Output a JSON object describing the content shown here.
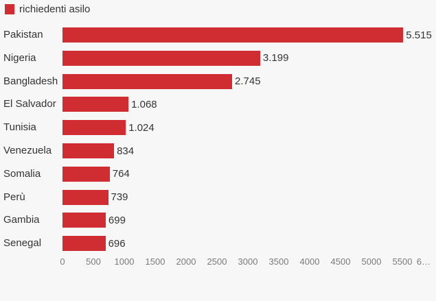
{
  "colors": {
    "bar": "#d02d33",
    "background": "#f7f7f7",
    "label_text": "#333333",
    "axis_text": "#7a7a7a"
  },
  "chart_data": {
    "type": "bar",
    "orientation": "horizontal",
    "legend_label": "richiedenti asilo",
    "categories": [
      "Pakistan",
      "Nigeria",
      "Bangladesh",
      "El Salvador",
      "Tunisia",
      "Venezuela",
      "Somalia",
      "Perù",
      "Gambia",
      "Senegal"
    ],
    "values": [
      5515,
      3199,
      2745,
      1068,
      1024,
      834,
      764,
      739,
      699,
      696
    ],
    "value_labels": [
      "5.515",
      "3.199",
      "2.745",
      "1.068",
      "1.024",
      "834",
      "764",
      "739",
      "699",
      "696"
    ],
    "xlim": [
      0,
      6000
    ],
    "x_ticks": [
      0,
      500,
      1000,
      1500,
      2000,
      2500,
      3000,
      3500,
      4000,
      4500,
      5000,
      5500,
      6000
    ],
    "x_tick_labels": [
      "0",
      "500",
      "1000",
      "1500",
      "2000",
      "2500",
      "3000",
      "3500",
      "4000",
      "4500",
      "5000",
      "5500",
      "6…"
    ],
    "grid": false,
    "legend_position": "top-left"
  }
}
